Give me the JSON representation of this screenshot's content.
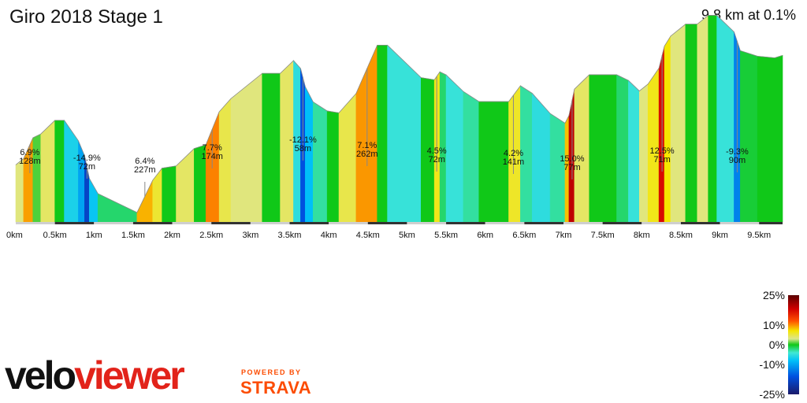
{
  "header": {
    "title": "Giro 2018 Stage 1",
    "summary": "9.8 km at 0.1%"
  },
  "branding": {
    "logo_part1": "velo",
    "logo_part2": "viewer",
    "powered_by": "POWERED BY",
    "partner": "STRAVA",
    "colors": {
      "veloviewer_red": "#e2231a",
      "strava_orange": "#fc4c02"
    }
  },
  "legend": {
    "ticks": [
      "25%",
      "10%",
      "0%",
      "-10%",
      "-25%"
    ],
    "values": [
      25,
      10,
      0,
      -10,
      -25
    ]
  },
  "chart_data": {
    "type": "area",
    "title": "Giro 2018 Stage 1",
    "x_unit": "km",
    "x_ticks": [
      "0km",
      "0.5km",
      "1km",
      "1.5km",
      "2km",
      "2.5km",
      "3km",
      "3.5km",
      "4km",
      "4.5km",
      "5km",
      "5.5km",
      "6km",
      "6.5km",
      "7km",
      "7.5km",
      "8km",
      "8.5km",
      "9km",
      "9.5km"
    ],
    "xlim": [
      0,
      9.8
    ],
    "segments": [
      {
        "start": 0.0,
        "end": 0.1,
        "grade": 2.5
      },
      {
        "start": 0.1,
        "end": 0.22,
        "grade": 6.9
      },
      {
        "start": 0.22,
        "end": 0.32,
        "grade": 1.5
      },
      {
        "start": 0.32,
        "end": 0.5,
        "grade": 3.0
      },
      {
        "start": 0.5,
        "end": 0.62,
        "grade": 0.0
      },
      {
        "start": 0.62,
        "end": 0.8,
        "grade": -4.5
      },
      {
        "start": 0.8,
        "end": 0.88,
        "grade": -7.5
      },
      {
        "start": 0.88,
        "end": 0.94,
        "grade": -14.9
      },
      {
        "start": 0.94,
        "end": 1.05,
        "grade": -5.5
      },
      {
        "start": 1.05,
        "end": 1.55,
        "grade": -1.5
      },
      {
        "start": 1.55,
        "end": 1.75,
        "grade": 6.4
      },
      {
        "start": 1.75,
        "end": 1.87,
        "grade": 4.0
      },
      {
        "start": 1.87,
        "end": 2.05,
        "grade": 0.5
      },
      {
        "start": 2.05,
        "end": 2.28,
        "grade": 3.0
      },
      {
        "start": 2.28,
        "end": 2.43,
        "grade": 1.0
      },
      {
        "start": 2.43,
        "end": 2.6,
        "grade": 7.7
      },
      {
        "start": 2.6,
        "end": 2.75,
        "grade": 3.5
      },
      {
        "start": 2.75,
        "end": 3.15,
        "grade": 2.5
      },
      {
        "start": 3.15,
        "end": 3.38,
        "grade": 0.0
      },
      {
        "start": 3.38,
        "end": 3.55,
        "grade": 3.0
      },
      {
        "start": 3.55,
        "end": 3.64,
        "grade": -3.5
      },
      {
        "start": 3.64,
        "end": 3.7,
        "grade": -12.1
      },
      {
        "start": 3.7,
        "end": 3.8,
        "grade": -6.0
      },
      {
        "start": 3.8,
        "end": 3.98,
        "grade": -2.0
      },
      {
        "start": 3.98,
        "end": 4.13,
        "grade": -0.5
      },
      {
        "start": 4.13,
        "end": 4.35,
        "grade": 3.5
      },
      {
        "start": 4.35,
        "end": 4.62,
        "grade": 7.1
      },
      {
        "start": 4.62,
        "end": 4.75,
        "grade": 0.0
      },
      {
        "start": 4.75,
        "end": 5.18,
        "grade": -3.0
      },
      {
        "start": 5.18,
        "end": 5.35,
        "grade": -0.5
      },
      {
        "start": 5.35,
        "end": 5.42,
        "grade": 4.5
      },
      {
        "start": 5.42,
        "end": 5.5,
        "grade": -1.5
      },
      {
        "start": 5.5,
        "end": 5.72,
        "grade": -3.0
      },
      {
        "start": 5.72,
        "end": 5.92,
        "grade": -2.0
      },
      {
        "start": 5.92,
        "end": 6.3,
        "grade": 0.0
      },
      {
        "start": 6.3,
        "end": 6.45,
        "grade": 4.2
      },
      {
        "start": 6.45,
        "end": 6.6,
        "grade": -2.0
      },
      {
        "start": 6.6,
        "end": 6.83,
        "grade": -3.5
      },
      {
        "start": 6.83,
        "end": 7.02,
        "grade": -2.0
      },
      {
        "start": 7.02,
        "end": 7.07,
        "grade": 6.0
      },
      {
        "start": 7.07,
        "end": 7.14,
        "grade": 15.0
      },
      {
        "start": 7.14,
        "end": 7.33,
        "grade": 3.0
      },
      {
        "start": 7.33,
        "end": 7.68,
        "grade": 0.0
      },
      {
        "start": 7.68,
        "end": 7.83,
        "grade": -1.5
      },
      {
        "start": 7.83,
        "end": 7.97,
        "grade": -3.0
      },
      {
        "start": 7.97,
        "end": 8.08,
        "grade": 2.5
      },
      {
        "start": 8.08,
        "end": 8.22,
        "grade": 4.5
      },
      {
        "start": 8.22,
        "end": 8.29,
        "grade": 12.5
      },
      {
        "start": 8.29,
        "end": 8.37,
        "grade": 5.0
      },
      {
        "start": 8.37,
        "end": 8.56,
        "grade": 2.5
      },
      {
        "start": 8.56,
        "end": 8.71,
        "grade": 0.0
      },
      {
        "start": 8.71,
        "end": 8.85,
        "grade": 2.5
      },
      {
        "start": 8.85,
        "end": 8.96,
        "grade": 0.0
      },
      {
        "start": 8.96,
        "end": 9.18,
        "grade": -3.0
      },
      {
        "start": 9.18,
        "end": 9.26,
        "grade": -9.3
      },
      {
        "start": 9.26,
        "end": 9.48,
        "grade": -1.0
      },
      {
        "start": 9.48,
        "end": 9.7,
        "grade": -0.3
      },
      {
        "start": 9.7,
        "end": 9.8,
        "grade": 1.0
      }
    ],
    "annotations": [
      {
        "km": 0.18,
        "grade_label": "6.9%",
        "length_label": "128m"
      },
      {
        "km": 0.91,
        "grade_label": "-14.9%",
        "length_label": "72m"
      },
      {
        "km": 1.65,
        "grade_label": "6.4%",
        "length_label": "227m"
      },
      {
        "km": 2.51,
        "grade_label": "7.7%",
        "length_label": "174m"
      },
      {
        "km": 3.67,
        "grade_label": "-12.1%",
        "length_label": "58m"
      },
      {
        "km": 4.49,
        "grade_label": "7.1%",
        "length_label": "262m"
      },
      {
        "km": 5.38,
        "grade_label": "4.5%",
        "length_label": "72m"
      },
      {
        "km": 6.36,
        "grade_label": "4.2%",
        "length_label": "141m"
      },
      {
        "km": 7.11,
        "grade_label": "15.0%",
        "length_label": "77m"
      },
      {
        "km": 8.26,
        "grade_label": "12.5%",
        "length_label": "71m"
      },
      {
        "km": 9.22,
        "grade_label": "-9.3%",
        "length_label": "90m"
      }
    ]
  }
}
